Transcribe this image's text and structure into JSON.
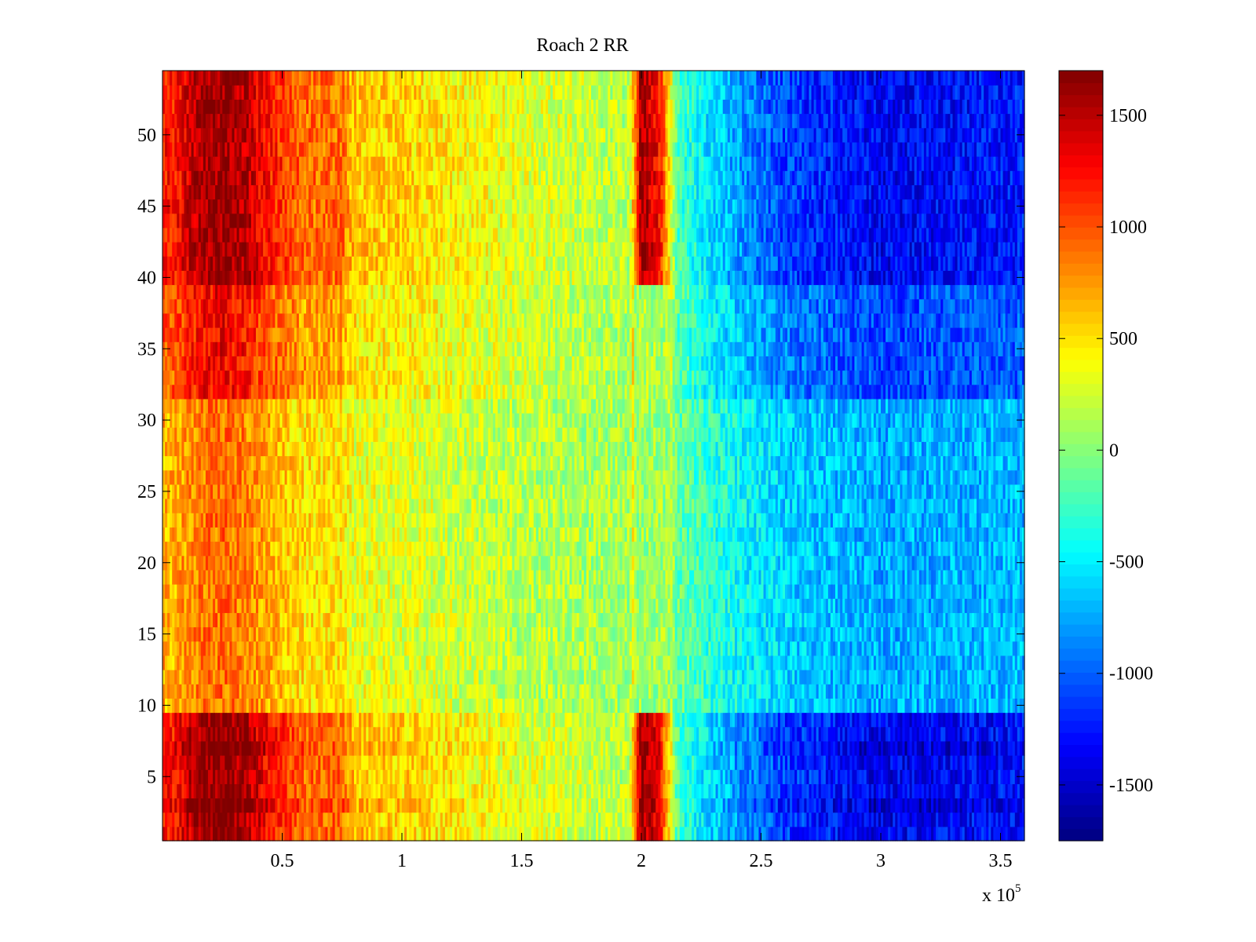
{
  "chart_data": {
    "type": "heatmap",
    "title": "Roach 2 RR",
    "xlabel": "",
    "ylabel": "",
    "x_exponent_label": "x 10",
    "x_exponent": "5",
    "xlim": [
      0,
      3.6
    ],
    "ylim": [
      0.5,
      54.5
    ],
    "x_ticks": [
      0.5,
      1,
      1.5,
      2,
      2.5,
      3,
      3.5
    ],
    "x_tick_labels": [
      "0.5",
      "1",
      "1.5",
      "2",
      "2.5",
      "3",
      "3.5"
    ],
    "y_ticks": [
      5,
      10,
      15,
      20,
      25,
      30,
      35,
      40,
      45,
      50
    ],
    "y_tick_labels": [
      "5",
      "10",
      "15",
      "20",
      "25",
      "30",
      "35",
      "40",
      "45",
      "50"
    ],
    "colorbar": {
      "colormap": "jet",
      "range": [
        -1750,
        1700
      ],
      "ticks": [
        1500,
        1000,
        500,
        0,
        -500,
        -1000,
        -1500
      ],
      "tick_labels": [
        "1500",
        "1000",
        "500",
        "0",
        "-500",
        "-1000",
        "-1500"
      ]
    },
    "rows": 54,
    "row_groups": [
      {
        "rows": "1-9",
        "description": "high-contrast rows (peak ~1700 near x=0.2e5, narrow peak at x=2.0e5, ~-1700 near x=3.0-3.6e5)"
      },
      {
        "rows": "10-31",
        "description": "low-contrast rows (~+700 at left to ~-900 at right)"
      },
      {
        "rows": "32-39",
        "description": "moderate rows (~+1300 at left to ~-1200 at right)"
      },
      {
        "rows": "40-54",
        "description": "high-contrast rows (peak ~1650 near x=0.2-0.35e5, peak at x=2.0e5)"
      }
    ],
    "column_profile_x": [
      0,
      0.05,
      0.15,
      0.25,
      0.35,
      0.45,
      0.6,
      0.75,
      0.8,
      1.0,
      1.5,
      1.95,
      2.0,
      2.08,
      2.15,
      2.3,
      2.6,
      3.0,
      3.3,
      3.6
    ],
    "column_profile_value": [
      1200,
      1200,
      1550,
      1650,
      1500,
      1200,
      900,
      900,
      600,
      550,
      300,
      150,
      1600,
      1200,
      -200,
      -600,
      -1100,
      -1350,
      -1300,
      -1250
    ],
    "grid": false,
    "legend": "none"
  }
}
